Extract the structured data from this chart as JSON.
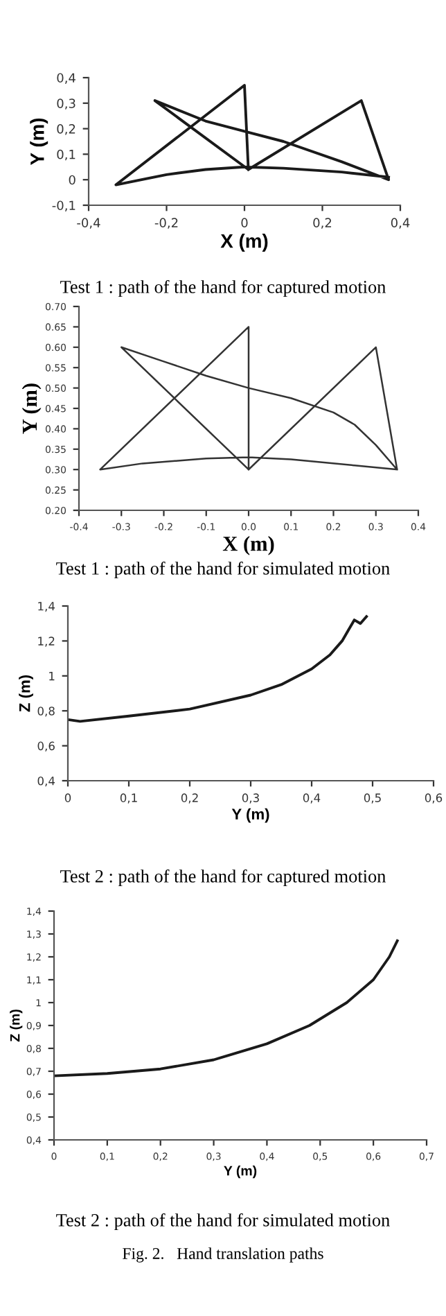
{
  "chart_data": [
    {
      "type": "line",
      "title": "Test 1 : path of the hand for captured motion",
      "xlabel": "X (m)",
      "ylabel": "Y (m)",
      "x": [
        0.01,
        0.3,
        0.37,
        0.25,
        0.1,
        0.0,
        -0.1,
        -0.23,
        0.01,
        0.0,
        -0.33,
        -0.2,
        -0.1,
        0.0,
        0.1,
        0.25,
        0.37
      ],
      "series": [
        {
          "color": "#1a1a1a",
          "values": [
            0.04,
            0.31,
            0.0,
            0.07,
            0.15,
            0.19,
            0.23,
            0.31,
            0.04,
            0.37,
            -0.02,
            0.02,
            0.04,
            0.05,
            0.045,
            0.03,
            0.01
          ]
        }
      ],
      "xlim": [
        -0.4,
        0.4
      ],
      "ylim": [
        -0.1,
        0.4
      ],
      "xticks": [
        {
          "value": -0.4,
          "label": "-0,4"
        },
        {
          "value": -0.2,
          "label": "-0,2"
        },
        0,
        {
          "value": 0.2,
          "label": "0,2"
        },
        {
          "value": 0.4,
          "label": "0,4"
        }
      ],
      "yticks": [
        {
          "value": -0.1,
          "label": "-0,1"
        },
        0,
        {
          "value": 0.1,
          "label": "0,1"
        },
        {
          "value": 0.2,
          "label": "0,2"
        },
        {
          "value": 0.3,
          "label": "0,3"
        },
        {
          "value": 0.4,
          "label": "0,4"
        }
      ]
    },
    {
      "type": "line",
      "title": "Test 1 : path of the hand for simulated motion",
      "xlabel": "X (m)",
      "ylabel": "Y (m)",
      "x": [
        0.0,
        0.3,
        0.35,
        0.3,
        0.25,
        0.2,
        0.1,
        0.0,
        -0.1,
        -0.2,
        -0.3,
        0.0,
        0.0,
        -0.35,
        -0.25,
        -0.1,
        0.0,
        0.1,
        0.25,
        0.35
      ],
      "series": [
        {
          "color": "#333333",
          "values": [
            0.3,
            0.6,
            0.3,
            0.36,
            0.41,
            0.44,
            0.475,
            0.5,
            0.53,
            0.565,
            0.6,
            0.3,
            0.65,
            0.3,
            0.315,
            0.327,
            0.33,
            0.325,
            0.31,
            0.3
          ]
        }
      ],
      "xlim": [
        -0.4,
        0.4
      ],
      "ylim": [
        0.2,
        0.7
      ],
      "xticks": [
        {
          "value": -0.4,
          "label": "-0.4"
        },
        {
          "value": -0.3,
          "label": "-0.3"
        },
        {
          "value": -0.2,
          "label": "-0.2"
        },
        {
          "value": -0.1,
          "label": "-0.1"
        },
        {
          "value": 0,
          "label": "0.0"
        },
        0.1,
        0.2,
        0.3,
        0.4
      ],
      "yticks": [
        {
          "value": 0.2,
          "label": "0.20"
        },
        0.25,
        {
          "value": 0.3,
          "label": "0.30"
        },
        0.35,
        {
          "value": 0.4,
          "label": "0.40"
        },
        0.45,
        {
          "value": 0.5,
          "label": "0.50"
        },
        0.55,
        {
          "value": 0.6,
          "label": "0.60"
        },
        0.65,
        {
          "value": 0.7,
          "label": "0.70"
        }
      ]
    },
    {
      "type": "line",
      "title": "Test 2 : path of the hand for captured motion",
      "xlabel": "Y (m)",
      "ylabel": "Z (m)",
      "x": [
        0.0,
        0.02,
        0.1,
        0.2,
        0.3,
        0.35,
        0.4,
        0.43,
        0.45,
        0.46,
        0.47,
        0.48,
        0.49
      ],
      "series": [
        {
          "color": "#1a1a1a",
          "values": [
            0.75,
            0.74,
            0.77,
            0.81,
            0.89,
            0.95,
            1.04,
            1.12,
            1.2,
            1.26,
            1.32,
            1.3,
            1.34
          ]
        }
      ],
      "xlim": [
        0,
        0.6
      ],
      "ylim": [
        0.4,
        1.4
      ],
      "xticks": [
        0,
        {
          "value": 0.1,
          "label": "0,1"
        },
        {
          "value": 0.2,
          "label": "0,2"
        },
        {
          "value": 0.3,
          "label": "0,3"
        },
        {
          "value": 0.4,
          "label": "0,4"
        },
        {
          "value": 0.5,
          "label": "0,5"
        },
        {
          "value": 0.6,
          "label": "0,6"
        }
      ],
      "yticks": [
        {
          "value": 0.4,
          "label": "0,4"
        },
        {
          "value": 0.6,
          "label": "0,6"
        },
        {
          "value": 0.8,
          "label": "0,8"
        },
        1,
        {
          "value": 1.2,
          "label": "1,2"
        },
        {
          "value": 1.4,
          "label": "1,4"
        }
      ]
    },
    {
      "type": "line",
      "title": "Test 2 : path of the hand for simulated motion",
      "xlabel": "Y (m)",
      "ylabel": "Z (m)",
      "annotations": [
        "Fig. 2.   Hand translation paths"
      ],
      "x": [
        0.0,
        0.1,
        0.2,
        0.3,
        0.4,
        0.48,
        0.55,
        0.6,
        0.63,
        0.645
      ],
      "series": [
        {
          "color": "#1a1a1a",
          "values": [
            0.68,
            0.69,
            0.71,
            0.75,
            0.82,
            0.9,
            1.0,
            1.1,
            1.2,
            1.27
          ]
        }
      ],
      "xlim": [
        0,
        0.7
      ],
      "ylim": [
        0.4,
        1.4
      ],
      "xticks": [
        0,
        {
          "value": 0.1,
          "label": "0,1"
        },
        {
          "value": 0.2,
          "label": "0,2"
        },
        {
          "value": 0.3,
          "label": "0,3"
        },
        {
          "value": 0.4,
          "label": "0,4"
        },
        {
          "value": 0.5,
          "label": "0,5"
        },
        {
          "value": 0.6,
          "label": "0,6"
        },
        {
          "value": 0.7,
          "label": "0,7"
        }
      ],
      "yticks": [
        {
          "value": 0.4,
          "label": "0,4"
        },
        {
          "value": 0.5,
          "label": "0,5"
        },
        {
          "value": 0.6,
          "label": "0,6"
        },
        {
          "value": 0.7,
          "label": "0,7"
        },
        {
          "value": 0.8,
          "label": "0,8"
        },
        {
          "value": 0.9,
          "label": "0,9"
        },
        1,
        {
          "value": 1.1,
          "label": "1,1"
        },
        {
          "value": 1.2,
          "label": "1,2"
        },
        {
          "value": 1.3,
          "label": "1,3"
        },
        {
          "value": 1.4,
          "label": "1,4"
        }
      ]
    }
  ]
}
